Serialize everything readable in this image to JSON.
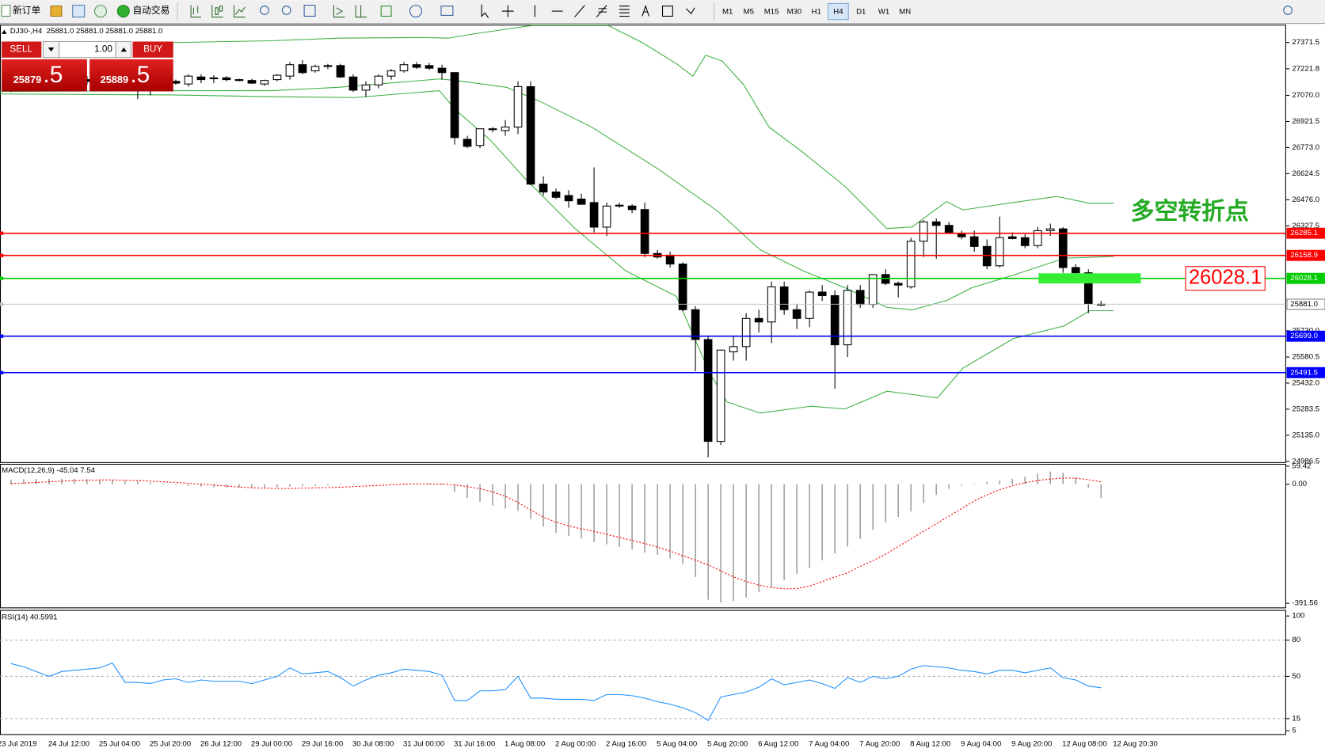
{
  "toolbar": {
    "new_order": "新订单",
    "auto_trading": "自动交易",
    "timeframes": [
      "M1",
      "M5",
      "M15",
      "M30",
      "H1",
      "H4",
      "D1",
      "W1",
      "MN"
    ],
    "active_timeframe": "H4"
  },
  "chart_header": {
    "symbol": "DJ30-,H4",
    "prices": "25881.0 25881.0 25881.0 25881.0"
  },
  "trade_panel": {
    "sell": "SELL",
    "lot": "1.00",
    "buy": "BUY",
    "sell_price": "25879",
    "sell_fraction": ".5",
    "buy_price": "25889",
    "buy_fraction": ".5"
  },
  "chart_data": [
    {
      "type": "candlestick",
      "up_color": "#ffffff",
      "down_color": "#000000",
      "ohlc": [
        [
          27120,
          27150,
          27090,
          27130
        ],
        [
          27130,
          27160,
          27100,
          27140
        ],
        [
          27140,
          27170,
          27110,
          27150
        ],
        [
          27150,
          27180,
          27120,
          27160
        ],
        [
          27160,
          27190,
          27130,
          27170
        ],
        [
          27170,
          27190,
          27140,
          27160
        ],
        [
          27160,
          27180,
          27130,
          27150
        ],
        [
          27150,
          27175,
          27120,
          27140
        ],
        [
          27140,
          27165,
          27110,
          27135
        ],
        [
          27135,
          27160,
          27100,
          27145
        ],
        [
          27140,
          27165,
          27048,
          27150
        ],
        [
          27150,
          27175,
          27070,
          27145
        ],
        [
          27145,
          27170,
          27100,
          27150
        ],
        [
          27150,
          27160,
          27130,
          27140
        ],
        [
          27135,
          27190,
          27120,
          27180
        ],
        [
          27175,
          27190,
          27140,
          27160
        ],
        [
          27165,
          27185,
          27140,
          27170
        ],
        [
          27170,
          27180,
          27150,
          27160
        ],
        [
          27160,
          27165,
          27150,
          27155
        ],
        [
          27155,
          27165,
          27135,
          27140
        ],
        [
          27135,
          27160,
          27125,
          27155
        ],
        [
          27160,
          27190,
          27150,
          27185
        ],
        [
          27180,
          27260,
          27160,
          27245
        ],
        [
          27245,
          27270,
          27190,
          27200
        ],
        [
          27210,
          27245,
          27200,
          27235
        ],
        [
          27235,
          27250,
          27220,
          27240
        ],
        [
          27240,
          27250,
          27170,
          27175
        ],
        [
          27175,
          27190,
          27090,
          27100
        ],
        [
          27100,
          27150,
          27060,
          27130
        ],
        [
          27130,
          27190,
          27110,
          27180
        ],
        [
          27180,
          27220,
          27160,
          27210
        ],
        [
          27210,
          27260,
          27200,
          27245
        ],
        [
          27245,
          27260,
          27220,
          27230
        ],
        [
          27240,
          27255,
          27215,
          27225
        ],
        [
          27225,
          27245,
          27160,
          27200
        ],
        [
          27200,
          27200,
          26790,
          26830
        ],
        [
          26820,
          26840,
          26770,
          26780
        ],
        [
          26785,
          26880,
          26770,
          26880
        ],
        [
          26880,
          26890,
          26860,
          26875
        ],
        [
          26870,
          26930,
          26840,
          26890
        ],
        [
          26890,
          27150,
          26850,
          27120
        ],
        [
          27120,
          27150,
          26560,
          26565
        ],
        [
          26565,
          26610,
          26500,
          26520
        ],
        [
          26520,
          26540,
          26480,
          26490
        ],
        [
          26500,
          26530,
          26430,
          26470
        ],
        [
          26480,
          26510,
          26450,
          26450
        ],
        [
          26460,
          26660,
          26290,
          26320
        ],
        [
          26320,
          26460,
          26270,
          26440
        ],
        [
          26445,
          26460,
          26430,
          26440
        ],
        [
          26440,
          26450,
          26400,
          26420
        ],
        [
          26420,
          26460,
          26150,
          26170
        ],
        [
          26170,
          26190,
          26140,
          26150
        ],
        [
          26160,
          26180,
          26090,
          26110
        ],
        [
          26110,
          26120,
          25840,
          25850
        ],
        [
          25850,
          25870,
          25500,
          25680
        ],
        [
          25680,
          25700,
          25010,
          25100
        ],
        [
          25100,
          25620,
          25080,
          25620
        ],
        [
          25610,
          25700,
          25560,
          25640
        ],
        [
          25640,
          25830,
          25560,
          25800
        ],
        [
          25800,
          25850,
          25720,
          25780
        ],
        [
          25780,
          26010,
          25660,
          25980
        ],
        [
          25980,
          26010,
          25820,
          25850
        ],
        [
          25850,
          25880,
          25740,
          25800
        ],
        [
          25800,
          25960,
          25750,
          25950
        ],
        [
          25950,
          25990,
          25900,
          25930
        ],
        [
          25930,
          25960,
          25400,
          25650
        ],
        [
          25650,
          25990,
          25580,
          25960
        ],
        [
          25960,
          25990,
          25860,
          25880
        ],
        [
          25880,
          26050,
          25860,
          26050
        ],
        [
          26050,
          26080,
          25990,
          26000
        ],
        [
          26000,
          26010,
          25920,
          25990
        ],
        [
          25980,
          26260,
          25970,
          26240
        ],
        [
          26240,
          26360,
          26150,
          26350
        ],
        [
          26350,
          26370,
          26140,
          26330
        ],
        [
          26330,
          26350,
          26280,
          26285
        ],
        [
          26285,
          26300,
          26250,
          26265
        ],
        [
          26265,
          26300,
          26180,
          26210
        ],
        [
          26210,
          26250,
          26080,
          26100
        ],
        [
          26100,
          26380,
          26090,
          26260
        ],
        [
          26265,
          26290,
          26250,
          26255
        ],
        [
          26260,
          26280,
          26200,
          26215
        ],
        [
          26215,
          26320,
          26200,
          26300
        ],
        [
          26300,
          26340,
          26270,
          26310
        ],
        [
          26310,
          26320,
          26060,
          26090
        ],
        [
          26090,
          26110,
          26040,
          26060
        ],
        [
          26060,
          26080,
          25830,
          25885
        ],
        [
          25881,
          25900,
          25870,
          25881
        ]
      ],
      "bollinger": {
        "color": "#3cb043",
        "upper": {
          "x": [
            12.8,
            20.5,
            25.8,
            32.5,
            34.5,
            36.5,
            41.1,
            47.1,
            49.8,
            52.5,
            53.8,
            54.8,
            56.1,
            57.8,
            59.8,
            62.5,
            65.8,
            69.1,
            71.1,
            73.8,
            75.1,
            77.8,
            82.5,
            85.1,
            87
          ],
          "values": [
            27371,
            27381,
            27396,
            27400,
            27396,
            27420,
            27468,
            27468,
            27371,
            27251,
            27179,
            27299,
            27266,
            27131,
            26890,
            26745,
            26552,
            26312,
            26321,
            26466,
            26418,
            26447,
            26495,
            26456,
            26456
          ]
        },
        "middle": {
          "x": [
            -0.9,
            12.8,
            20.5,
            25.8,
            33.8,
            35.1,
            39.1,
            41.8,
            45.8,
            51.1,
            55.8,
            59.1,
            62.5,
            65.8,
            69.1,
            71.1,
            73.8,
            75.8,
            79.1,
            83.1,
            87
          ],
          "values": [
            27092,
            27097,
            27097,
            27116,
            27164,
            27155,
            27116,
            27034,
            26890,
            26649,
            26408,
            26191,
            26071,
            25975,
            25863,
            25849,
            25902,
            25975,
            26047,
            26143,
            26153
          ]
        },
        "lower": {
          "x": [
            -0.9,
            12.8,
            20.5,
            27.1,
            33.8,
            35.1,
            37.8,
            40.5,
            44.5,
            48.5,
            52.5,
            55.1,
            56.5,
            59.1,
            63.1,
            65.8,
            69.1,
            73.1,
            75.1,
            79.1,
            83.1,
            85.1,
            87
          ],
          "values": [
            27078,
            27073,
            27063,
            27058,
            27097,
            26986,
            26817,
            26601,
            26312,
            26071,
            25926,
            25492,
            25324,
            25261,
            25300,
            25285,
            25386,
            25348,
            25517,
            25686,
            25758,
            25844,
            25844
          ]
        }
      },
      "ylim": [
        24977,
        27473
      ],
      "yticks": [
        27371.5,
        27221.8,
        {
          "value": 27070,
          "label": "27070.0"
        },
        26921.5,
        {
          "value": 26773,
          "label": "26773.0"
        },
        26624.5,
        {
          "value": 26476,
          "label": "26476.0"
        },
        26327.5,
        {
          "value": 25730,
          "label": "25730.0"
        },
        25580.5,
        {
          "value": 25432,
          "label": "25432.0"
        },
        25283.5,
        {
          "value": 25135,
          "label": "25135.0"
        },
        24986.5
      ],
      "levels": [
        {
          "value": 26285.1,
          "color": "#ff0000",
          "text_color": "#ffffff"
        },
        {
          "value": 26158.9,
          "color": "#ff0000",
          "text_color": "#ffffff"
        },
        {
          "value": 26028.1,
          "color": "#00cc00",
          "text_color": "#ffffff"
        },
        {
          "value": 25881,
          "label": "25881.0",
          "color": "#c0c0c0",
          "text_color": "#000000"
        },
        {
          "value": 25699,
          "label": "25699.0",
          "color": "#0000ff",
          "text_color": "#ffffff"
        },
        {
          "value": 25491.5,
          "color": "#0000ff",
          "text_color": "#ffffff"
        }
      ],
      "annotations": [
        {
          "text": "多空转折点",
          "color": "#22aa22"
        },
        {
          "text": "26028.1",
          "color": "#ff0000"
        }
      ],
      "x_labels": [
        "23 Jul 2019",
        "24 Jul 12:00",
        "25 Jul 04:00",
        "25 Jul 20:00",
        "26 Jul 12:00",
        "29 Jul 00:00",
        "29 Jul 16:00",
        "30 Jul 08:00",
        "31 Jul 00:00",
        "31 Jul 16:00",
        "1 Aug 08:00",
        "2 Aug 00:00",
        "2 Aug 16:00",
        "5 Aug 04:00",
        "5 Aug 20:00",
        "6 Aug 12:00",
        "7 Aug 04:00",
        "7 Aug 20:00",
        "8 Aug 12:00",
        "9 Aug 04:00",
        "9 Aug 20:00",
        "12 Aug 08:00",
        "12 Aug 20:30"
      ]
    },
    {
      "type": "macd",
      "title": "MACD(12,26,9) -45.04 7.54",
      "histogram_color": "#a0a0a0",
      "signal_color": "#ff0000",
      "histogram": [
        15,
        16,
        17,
        18,
        18,
        17,
        16,
        15,
        14,
        12,
        10,
        6,
        2,
        -3,
        -6,
        -8,
        -10,
        -11,
        -12,
        -12,
        -11,
        -10,
        -8,
        -6,
        -5,
        -4,
        -3,
        -2,
        -1,
        0,
        1,
        2,
        3,
        3,
        2,
        -25,
        -45,
        -58,
        -70,
        -80,
        -88,
        -115,
        -140,
        -160,
        -170,
        -178,
        -190,
        -198,
        -206,
        -215,
        -225,
        -232,
        -245,
        -262,
        -305,
        -380,
        -389,
        -385,
        -372,
        -355,
        -340,
        -315,
        -295,
        -275,
        -250,
        -228,
        -205,
        -180,
        -150,
        -125,
        -108,
        -90,
        -62,
        -35,
        -15,
        -5,
        2,
        8,
        12,
        18,
        25,
        35,
        42,
        38,
        22,
        -12,
        -45.04
      ],
      "signal": [
        2,
        4,
        6,
        8,
        10,
        12,
        13,
        14,
        14,
        13,
        12,
        10,
        8,
        6,
        3,
        0,
        -3,
        -6,
        -9,
        -12,
        -13,
        -14,
        -14,
        -13,
        -12,
        -11,
        -10,
        -8,
        -6,
        -4,
        -2,
        0,
        1,
        1,
        0,
        -2,
        -8,
        -15,
        -25,
        -40,
        -60,
        -85,
        -108,
        -125,
        -137,
        -147,
        -155,
        -165,
        -175,
        -185,
        -195,
        -207,
        -220,
        -235,
        -250,
        -265,
        -285,
        -305,
        -320,
        -332,
        -340,
        -344,
        -343,
        -335,
        -320,
        -305,
        -292,
        -270,
        -252,
        -230,
        -205,
        -180,
        -155,
        -130,
        -105,
        -80,
        -55,
        -35,
        -18,
        -5,
        5,
        12,
        17,
        20,
        20,
        15,
        7.54
      ],
      "ylim": [
        -408,
        67
      ],
      "yticks": [
        59.42,
        {
          "value": 0,
          "label": "0.00"
        },
        -391.56
      ]
    },
    {
      "type": "rsi",
      "title": "RSI(14) 40.5991",
      "color": "#1e90ff",
      "values": [
        60.6,
        58,
        54,
        50,
        54,
        55,
        56,
        57,
        61,
        45,
        45,
        44,
        47,
        48,
        45,
        47,
        46,
        46,
        46,
        44,
        47,
        50,
        57,
        52,
        53,
        54,
        49,
        42,
        47,
        51,
        53,
        56,
        55,
        54,
        51,
        30,
        30,
        38,
        38,
        39,
        50,
        32,
        32,
        31,
        31,
        31,
        30,
        35,
        35,
        34,
        32,
        29,
        27,
        24,
        20,
        13.5,
        33,
        35,
        37,
        41,
        48,
        43,
        45,
        47,
        44,
        40,
        49,
        45,
        50,
        48,
        50,
        56,
        59,
        58,
        57,
        55,
        54,
        52,
        55,
        55,
        53,
        55,
        57,
        49,
        47,
        42,
        40.5991
      ],
      "ylim": [
        1.5,
        105
      ],
      "yticks": [
        100,
        80,
        50,
        15,
        5
      ],
      "levels": [
        80,
        50,
        15
      ]
    }
  ]
}
